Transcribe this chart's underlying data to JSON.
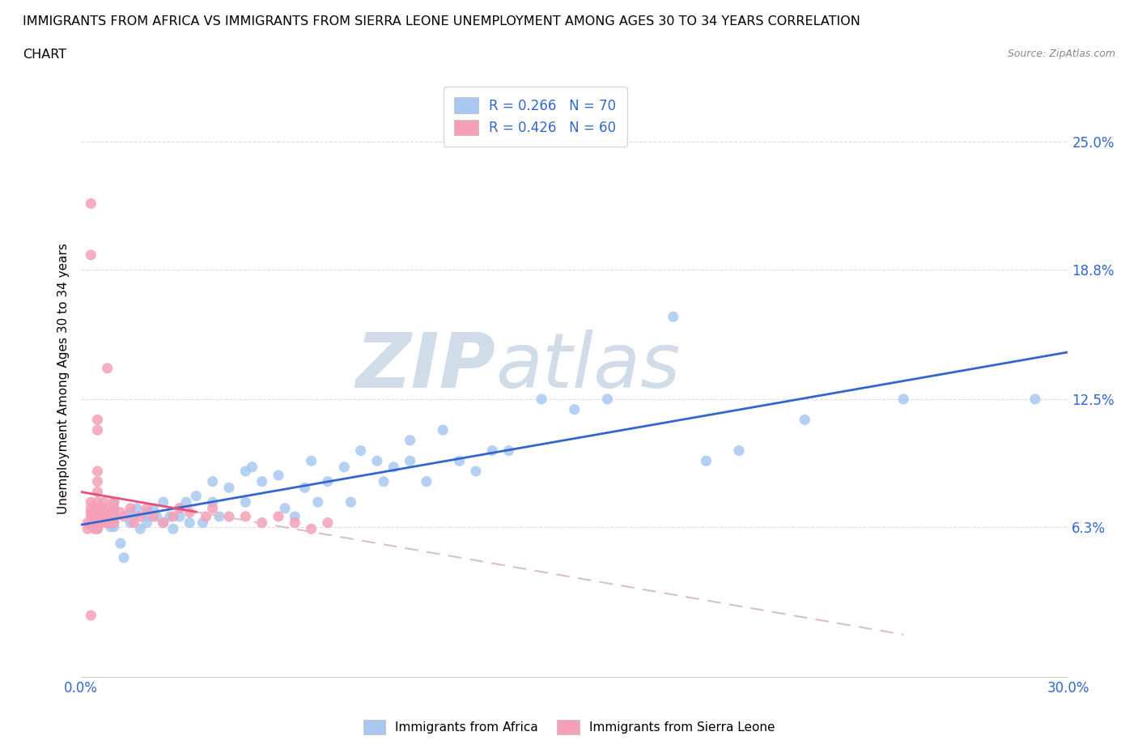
{
  "title_line1": "IMMIGRANTS FROM AFRICA VS IMMIGRANTS FROM SIERRA LEONE UNEMPLOYMENT AMONG AGES 30 TO 34 YEARS CORRELATION",
  "title_line2": "CHART",
  "source_text": "Source: ZipAtlas.com",
  "ylabel": "Unemployment Among Ages 30 to 34 years",
  "xmin": 0.0,
  "xmax": 0.3,
  "ymin": -0.01,
  "ymax": 0.28,
  "yticks": [
    0.063,
    0.125,
    0.188,
    0.25
  ],
  "ytick_labels": [
    "6.3%",
    "12.5%",
    "18.8%",
    "25.0%"
  ],
  "xticks": [
    0.0,
    0.05,
    0.1,
    0.15,
    0.2,
    0.25,
    0.3
  ],
  "xtick_labels": [
    "0.0%",
    "",
    "",
    "",
    "",
    "",
    "30.0%"
  ],
  "color_africa": "#a8c8f0",
  "color_sierra": "#f5a0b8",
  "trendline_africa_color": "#3366cc",
  "trendline_sierra_dashed_color": "#d8c0c8",
  "trendline_sierra_solid_color": "#e8507a",
  "legend_R_africa": "R = 0.266",
  "legend_N_africa": "N = 70",
  "legend_R_sierra": "R = 0.426",
  "legend_N_sierra": "N = 60",
  "africa_x": [
    0.005,
    0.005,
    0.007,
    0.008,
    0.009,
    0.01,
    0.01,
    0.01,
    0.01,
    0.01,
    0.012,
    0.013,
    0.015,
    0.015,
    0.016,
    0.017,
    0.018,
    0.02,
    0.02,
    0.02,
    0.022,
    0.023,
    0.025,
    0.025,
    0.027,
    0.028,
    0.03,
    0.03,
    0.032,
    0.033,
    0.035,
    0.037,
    0.04,
    0.04,
    0.042,
    0.045,
    0.05,
    0.05,
    0.052,
    0.055,
    0.06,
    0.062,
    0.065,
    0.068,
    0.07,
    0.072,
    0.075,
    0.08,
    0.082,
    0.085,
    0.09,
    0.092,
    0.095,
    0.1,
    0.1,
    0.105,
    0.11,
    0.115,
    0.12,
    0.125,
    0.13,
    0.14,
    0.15,
    0.16,
    0.18,
    0.19,
    0.2,
    0.22,
    0.25,
    0.29
  ],
  "africa_y": [
    0.062,
    0.065,
    0.07,
    0.068,
    0.063,
    0.065,
    0.072,
    0.075,
    0.063,
    0.068,
    0.055,
    0.048,
    0.07,
    0.065,
    0.068,
    0.072,
    0.062,
    0.065,
    0.068,
    0.07,
    0.072,
    0.068,
    0.075,
    0.065,
    0.068,
    0.062,
    0.072,
    0.068,
    0.075,
    0.065,
    0.078,
    0.065,
    0.085,
    0.075,
    0.068,
    0.082,
    0.09,
    0.075,
    0.092,
    0.085,
    0.088,
    0.072,
    0.068,
    0.082,
    0.095,
    0.075,
    0.085,
    0.092,
    0.075,
    0.1,
    0.095,
    0.085,
    0.092,
    0.095,
    0.105,
    0.085,
    0.11,
    0.095,
    0.09,
    0.1,
    0.1,
    0.125,
    0.12,
    0.125,
    0.165,
    0.095,
    0.1,
    0.115,
    0.125,
    0.125
  ],
  "sierra_x": [
    0.002,
    0.002,
    0.003,
    0.003,
    0.003,
    0.003,
    0.003,
    0.004,
    0.004,
    0.004,
    0.004,
    0.005,
    0.005,
    0.005,
    0.005,
    0.005,
    0.005,
    0.005,
    0.005,
    0.005,
    0.005,
    0.006,
    0.006,
    0.006,
    0.007,
    0.007,
    0.007,
    0.008,
    0.008,
    0.008,
    0.009,
    0.009,
    0.01,
    0.01,
    0.01,
    0.01,
    0.012,
    0.013,
    0.015,
    0.016,
    0.018,
    0.02,
    0.022,
    0.025,
    0.028,
    0.03,
    0.033,
    0.038,
    0.04,
    0.045,
    0.05,
    0.055,
    0.06,
    0.065,
    0.07,
    0.075,
    0.008,
    0.003,
    0.003,
    0.003
  ],
  "sierra_y": [
    0.062,
    0.065,
    0.07,
    0.065,
    0.068,
    0.072,
    0.075,
    0.065,
    0.068,
    0.072,
    0.062,
    0.065,
    0.068,
    0.072,
    0.075,
    0.08,
    0.085,
    0.09,
    0.11,
    0.115,
    0.062,
    0.065,
    0.068,
    0.072,
    0.065,
    0.068,
    0.075,
    0.072,
    0.065,
    0.068,
    0.065,
    0.07,
    0.068,
    0.072,
    0.075,
    0.065,
    0.07,
    0.068,
    0.072,
    0.065,
    0.068,
    0.072,
    0.068,
    0.065,
    0.068,
    0.072,
    0.07,
    0.068,
    0.072,
    0.068,
    0.068,
    0.065,
    0.068,
    0.065,
    0.062,
    0.065,
    0.14,
    0.22,
    0.195,
    0.02
  ],
  "watermark_top": "ZIP",
  "watermark_bot": "atlas",
  "watermark_color": "#d0dce8",
  "grid_color": "#dddddd",
  "tick_label_color": "#3366cc"
}
